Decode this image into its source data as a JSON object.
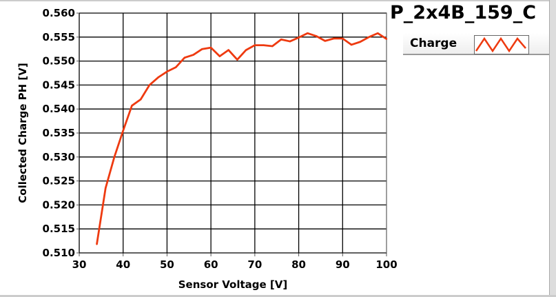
{
  "chart_data": {
    "type": "line",
    "title": "P_2x4B_159_C",
    "xlabel": "Sensor Voltage [V]",
    "ylabel": "Collected Charge PH [V]",
    "xlim": [
      30,
      100
    ],
    "ylim": [
      0.51,
      0.56
    ],
    "xticks": [
      "30",
      "40",
      "50",
      "60",
      "70",
      "80",
      "90",
      "100"
    ],
    "yticks": [
      "0.510",
      "0.515",
      "0.520",
      "0.525",
      "0.530",
      "0.535",
      "0.540",
      "0.545",
      "0.550",
      "0.555",
      "0.560"
    ],
    "grid": true,
    "legend_placement": "top-right outside",
    "series": [
      {
        "name": "Charge",
        "color": "#ee3a10",
        "x": [
          34,
          36,
          38,
          40,
          42,
          44,
          46,
          48,
          50,
          52,
          54,
          56,
          58,
          60,
          62,
          64,
          66,
          68,
          70,
          72,
          74,
          76,
          78,
          80,
          82,
          84,
          86,
          88,
          90,
          92,
          94,
          96,
          98,
          100
        ],
        "y": [
          0.5118,
          0.5235,
          0.53,
          0.5355,
          0.5407,
          0.542,
          0.545,
          0.5466,
          0.5478,
          0.5487,
          0.5507,
          0.5513,
          0.5525,
          0.5528,
          0.551,
          0.5523,
          0.5503,
          0.5523,
          0.5533,
          0.5533,
          0.5531,
          0.5545,
          0.5541,
          0.5549,
          0.5558,
          0.5552,
          0.5542,
          0.5547,
          0.5547,
          0.5534,
          0.554,
          0.555,
          0.5558,
          0.5546
        ]
      }
    ]
  }
}
